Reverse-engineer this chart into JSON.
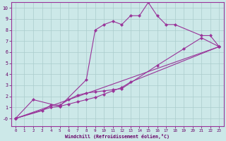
{
  "xlabel": "Windchill (Refroidissement éolien,°C)",
  "background_color": "#cce8e8",
  "grid_color": "#aacccc",
  "line_color": "#993399",
  "xlim": [
    -0.5,
    23.5
  ],
  "ylim": [
    -0.7,
    10.5
  ],
  "xticks": [
    0,
    1,
    2,
    3,
    4,
    5,
    6,
    7,
    8,
    9,
    10,
    11,
    12,
    13,
    14,
    15,
    16,
    17,
    18,
    19,
    20,
    21,
    22,
    23
  ],
  "yticks": [
    0,
    1,
    2,
    3,
    4,
    5,
    6,
    7,
    8,
    9,
    10
  ],
  "yticklabels": [
    "-0",
    "1",
    "2",
    "3",
    "4",
    "5",
    "6",
    "7",
    "8",
    "9",
    "10"
  ],
  "series1_x": [
    0,
    2,
    5,
    8,
    9,
    10,
    11,
    12,
    13,
    14,
    15,
    16,
    17,
    18,
    21,
    22,
    23
  ],
  "series1_y": [
    0.0,
    1.7,
    1.1,
    3.5,
    8.0,
    8.5,
    8.8,
    8.5,
    9.3,
    9.3,
    10.5,
    9.3,
    8.5,
    8.5,
    7.5,
    7.5,
    6.5
  ],
  "series2_x": [
    0,
    3,
    4,
    5,
    6,
    7,
    8,
    9,
    10,
    11,
    12,
    16,
    19,
    21,
    23
  ],
  "series2_y": [
    0.0,
    0.7,
    1.2,
    1.2,
    1.7,
    2.1,
    2.3,
    2.4,
    2.5,
    2.6,
    2.7,
    4.8,
    6.3,
    7.3,
    6.5
  ],
  "series3_x": [
    0,
    4,
    5,
    6,
    7,
    8,
    9,
    10,
    11,
    12,
    13,
    23
  ],
  "series3_y": [
    0.0,
    1.0,
    1.1,
    1.3,
    1.5,
    1.7,
    1.9,
    2.2,
    2.5,
    2.8,
    3.3,
    6.5
  ],
  "series4_x": [
    0,
    23
  ],
  "series4_y": [
    0.0,
    6.5
  ]
}
